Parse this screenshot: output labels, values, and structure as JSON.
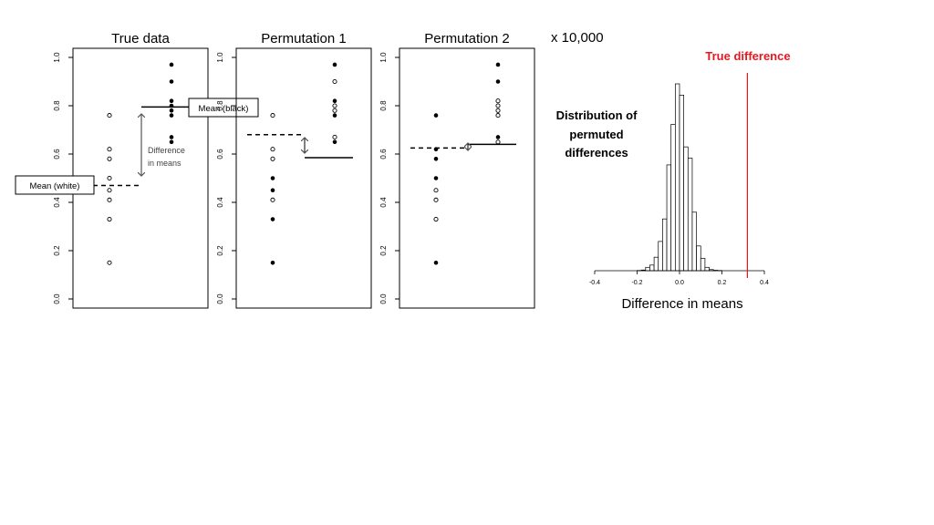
{
  "multiplier_label": "x 10,000",
  "chart_data": [
    {
      "type": "scatter",
      "title": "True data",
      "ylim": [
        0,
        1
      ],
      "yticks": [
        0.0,
        0.2,
        0.4,
        0.6,
        0.8,
        1.0
      ],
      "ytick_labels": [
        "0.0",
        "0.2",
        "0.4",
        "0.6",
        "0.8",
        "1.0"
      ],
      "series": [
        {
          "name": "white",
          "marker": "open",
          "column": 1,
          "values": [
            0.15,
            0.33,
            0.41,
            0.45,
            0.5,
            0.58,
            0.62,
            0.76
          ]
        },
        {
          "name": "black",
          "marker": "filled",
          "column": 2,
          "values": [
            0.65,
            0.67,
            0.76,
            0.78,
            0.8,
            0.82,
            0.9,
            0.97
          ]
        }
      ],
      "means": [
        {
          "group": "white",
          "value": 0.47,
          "style": "dashed"
        },
        {
          "group": "black",
          "value": 0.795,
          "style": "solid"
        }
      ],
      "annotations": {
        "mean_black": "Mean (black)",
        "mean_white": "Mean (white)",
        "difference": [
          "Difference",
          "in means"
        ]
      }
    },
    {
      "type": "scatter",
      "title": "Permutation 1",
      "ylim": [
        0,
        1
      ],
      "yticks": [
        0.0,
        0.2,
        0.4,
        0.6,
        0.8,
        1.0
      ],
      "ytick_labels": [
        "0.0",
        "0.2",
        "0.4",
        "0.6",
        "0.8",
        "1.0"
      ],
      "points": [
        {
          "column": 1,
          "value": 0.76,
          "marker": "open"
        },
        {
          "column": 1,
          "value": 0.62,
          "marker": "open"
        },
        {
          "column": 1,
          "value": 0.58,
          "marker": "open"
        },
        {
          "column": 1,
          "value": 0.5,
          "marker": "filled"
        },
        {
          "column": 1,
          "value": 0.45,
          "marker": "filled"
        },
        {
          "column": 1,
          "value": 0.41,
          "marker": "open"
        },
        {
          "column": 1,
          "value": 0.33,
          "marker": "filled"
        },
        {
          "column": 1,
          "value": 0.15,
          "marker": "filled"
        },
        {
          "column": 2,
          "value": 0.97,
          "marker": "filled"
        },
        {
          "column": 2,
          "value": 0.9,
          "marker": "open"
        },
        {
          "column": 2,
          "value": 0.82,
          "marker": "filled"
        },
        {
          "column": 2,
          "value": 0.8,
          "marker": "open"
        },
        {
          "column": 2,
          "value": 0.78,
          "marker": "open"
        },
        {
          "column": 2,
          "value": 0.76,
          "marker": "filled"
        },
        {
          "column": 2,
          "value": 0.67,
          "marker": "open"
        },
        {
          "column": 2,
          "value": 0.65,
          "marker": "filled"
        }
      ],
      "means": [
        {
          "column": 1,
          "value": 0.68,
          "style": "dashed"
        },
        {
          "column": 2,
          "value": 0.585,
          "style": "solid"
        }
      ]
    },
    {
      "type": "scatter",
      "title": "Permutation 2",
      "ylim": [
        0,
        1
      ],
      "yticks": [
        0.0,
        0.2,
        0.4,
        0.6,
        0.8,
        1.0
      ],
      "ytick_labels": [
        "0.0",
        "0.2",
        "0.4",
        "0.6",
        "0.8",
        "1.0"
      ],
      "points": [
        {
          "column": 1,
          "value": 0.76,
          "marker": "filled"
        },
        {
          "column": 1,
          "value": 0.62,
          "marker": "filled"
        },
        {
          "column": 1,
          "value": 0.58,
          "marker": "filled"
        },
        {
          "column": 1,
          "value": 0.5,
          "marker": "filled"
        },
        {
          "column": 1,
          "value": 0.45,
          "marker": "open"
        },
        {
          "column": 1,
          "value": 0.41,
          "marker": "open"
        },
        {
          "column": 1,
          "value": 0.33,
          "marker": "open"
        },
        {
          "column": 1,
          "value": 0.15,
          "marker": "filled"
        },
        {
          "column": 2,
          "value": 0.97,
          "marker": "filled"
        },
        {
          "column": 2,
          "value": 0.9,
          "marker": "filled"
        },
        {
          "column": 2,
          "value": 0.82,
          "marker": "open"
        },
        {
          "column": 2,
          "value": 0.8,
          "marker": "open"
        },
        {
          "column": 2,
          "value": 0.78,
          "marker": "open"
        },
        {
          "column": 2,
          "value": 0.76,
          "marker": "open"
        },
        {
          "column": 2,
          "value": 0.67,
          "marker": "filled"
        },
        {
          "column": 2,
          "value": 0.65,
          "marker": "open"
        }
      ],
      "means": [
        {
          "column": 1,
          "value": 0.625,
          "style": "dashed"
        },
        {
          "column": 2,
          "value": 0.64,
          "style": "solid"
        }
      ]
    },
    {
      "type": "bar",
      "subtype": "histogram",
      "xlabel": "Difference in means",
      "xlim": [
        -0.4,
        0.4
      ],
      "xticks": [
        -0.4,
        -0.2,
        0.0,
        0.2,
        0.4
      ],
      "xtick_labels": [
        "-0.4",
        "-0.2",
        "0.0",
        "0.2",
        "0.4"
      ],
      "bin_width": 0.02,
      "bin_starts": [
        -0.2,
        -0.18,
        -0.16,
        -0.14,
        -0.12,
        -0.1,
        -0.08,
        -0.06,
        -0.04,
        -0.02,
        0.0,
        0.02,
        0.04,
        0.06,
        0.08,
        0.1,
        0.12,
        0.14,
        0.16,
        0.18,
        0.2
      ],
      "counts": [
        1,
        3,
        15,
        25,
        60,
        130,
        230,
        470,
        650,
        830,
        780,
        550,
        500,
        260,
        110,
        55,
        15,
        5,
        2,
        1,
        0
      ],
      "reference_line": {
        "x": 0.32,
        "color": "#e8171f"
      },
      "annotations": {
        "true_difference": "True difference",
        "distribution": [
          "Distribution of",
          "permuted",
          "differences"
        ]
      }
    }
  ]
}
